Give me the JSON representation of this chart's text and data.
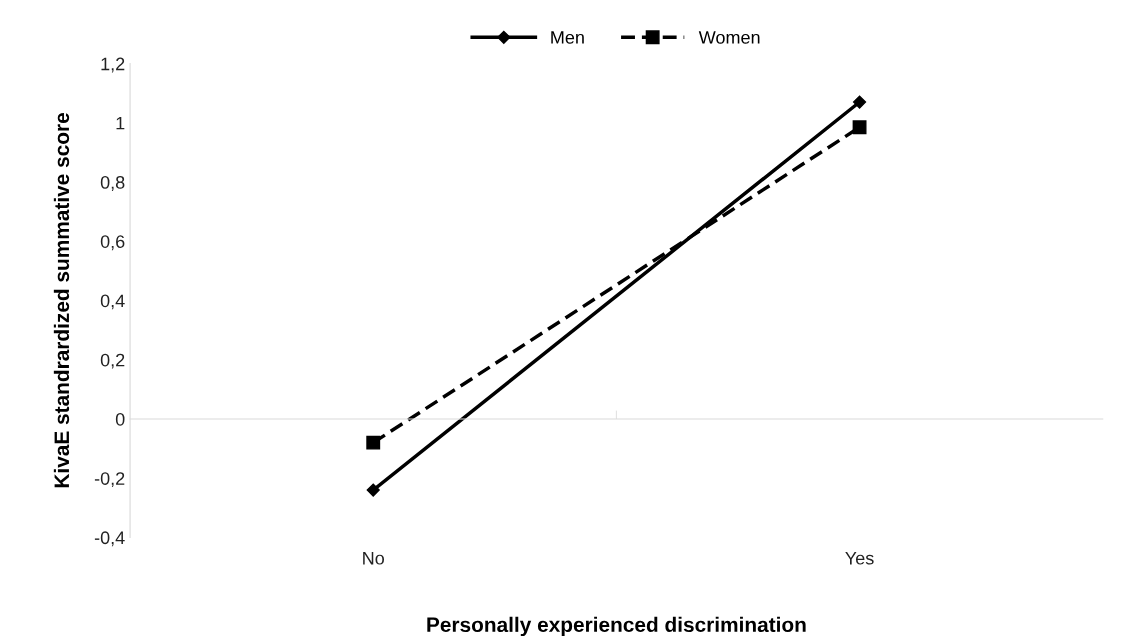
{
  "chart_data": {
    "type": "line",
    "xlabel": "Personally experienced discrimination",
    "ylabel": "KivaE standrardized summative score",
    "categories": [
      "No",
      "Yes"
    ],
    "series": [
      {
        "name": "Men",
        "color": "#000000",
        "values": [
          -0.24,
          1.07
        ],
        "marker": "diamond",
        "line_style": "solid"
      },
      {
        "name": "Women",
        "color": "#000000",
        "values": [
          -0.08,
          0.985
        ],
        "marker": "square",
        "line_style": "dashed"
      }
    ],
    "ylim": [
      -0.4,
      1.2
    ],
    "yticks": [
      {
        "value": -0.4,
        "label": "-0,4"
      },
      {
        "value": -0.2,
        "label": "-0,2"
      },
      {
        "value": 0,
        "label": "0"
      },
      {
        "value": 0.2,
        "label": "0,2"
      },
      {
        "value": 0.4,
        "label": "0,4"
      },
      {
        "value": 0.6,
        "label": "0,6"
      },
      {
        "value": 0.8,
        "label": "0,8"
      },
      {
        "value": 1,
        "label": "1"
      },
      {
        "value": 1.2,
        "label": "1,2"
      }
    ],
    "legend": "top"
  }
}
